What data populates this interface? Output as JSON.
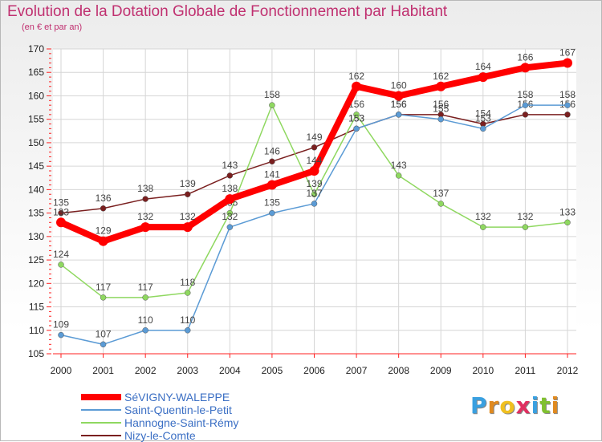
{
  "title": "Evolution de la Dotation Globale de Fonctionnement par Habitant",
  "subtitle": "(en € et par an)",
  "brand": {
    "letters": [
      "P",
      "r",
      "o",
      "x",
      "i",
      "t",
      "i"
    ],
    "colors": [
      "#3aa0e0",
      "#e08a20",
      "#f0c020",
      "#e03060",
      "#3aa0e0",
      "#80c030",
      "#e08a20"
    ]
  },
  "chart_data": {
    "type": "line",
    "title": "Evolution de la Dotation Globale de Fonctionnement par Habitant",
    "subtitle": "(en € et par an)",
    "xlabel": "",
    "ylabel": "",
    "x": [
      2000,
      2001,
      2002,
      2003,
      2004,
      2005,
      2006,
      2007,
      2008,
      2009,
      2010,
      2011,
      2012
    ],
    "ylim": [
      105,
      170
    ],
    "yticks": [
      105,
      110,
      115,
      120,
      125,
      130,
      135,
      140,
      145,
      150,
      155,
      160,
      165,
      170
    ],
    "grid": true,
    "legend_position": "bottom-left",
    "series": [
      {
        "name": "Nizy-le-Comte",
        "color": "#7a1f1f",
        "values": [
          135,
          136,
          138,
          139,
          143,
          146,
          149,
          153,
          156,
          156,
          154,
          156,
          156
        ],
        "labels": [
          "135",
          "136",
          "138",
          "139",
          "143",
          "146",
          "149",
          "153",
          "156",
          "156",
          "154",
          "156",
          "156"
        ]
      },
      {
        "name": "Hannogne-Saint-Rémy",
        "color": "#8fd860",
        "values": [
          124,
          117,
          117,
          118,
          135,
          158,
          139,
          156,
          143,
          137,
          132,
          132,
          133
        ],
        "labels": [
          "124",
          "117",
          "117",
          "118",
          "135",
          "158",
          "139",
          "156",
          "143",
          "137",
          "132",
          "132",
          "133"
        ]
      },
      {
        "name": "Saint-Quentin-le-Petit",
        "color": "#5b9bd5",
        "values": [
          109,
          107,
          110,
          110,
          132,
          135,
          137,
          153,
          156,
          155,
          153,
          158,
          158
        ],
        "labels": [
          "109",
          "107",
          "110",
          "110",
          "132",
          "135",
          "137",
          "153",
          "156",
          "155",
          "153",
          "158",
          "158"
        ]
      },
      {
        "name": "SéVIGNY-WALEPPE",
        "color": "#ff0000",
        "values": [
          133,
          129,
          132,
          132,
          138,
          141,
          144,
          162,
          160,
          162,
          164,
          166,
          167
        ],
        "labels": [
          "133",
          "129",
          "132",
          "132",
          "138",
          "141",
          "144",
          "162",
          "160",
          "162",
          "164",
          "166",
          "167"
        ]
      }
    ],
    "legend_order": [
      "SéVIGNY-WALEPPE",
      "Saint-Quentin-le-Petit",
      "Hannogne-Saint-Rémy",
      "Nizy-le-Comte"
    ]
  }
}
